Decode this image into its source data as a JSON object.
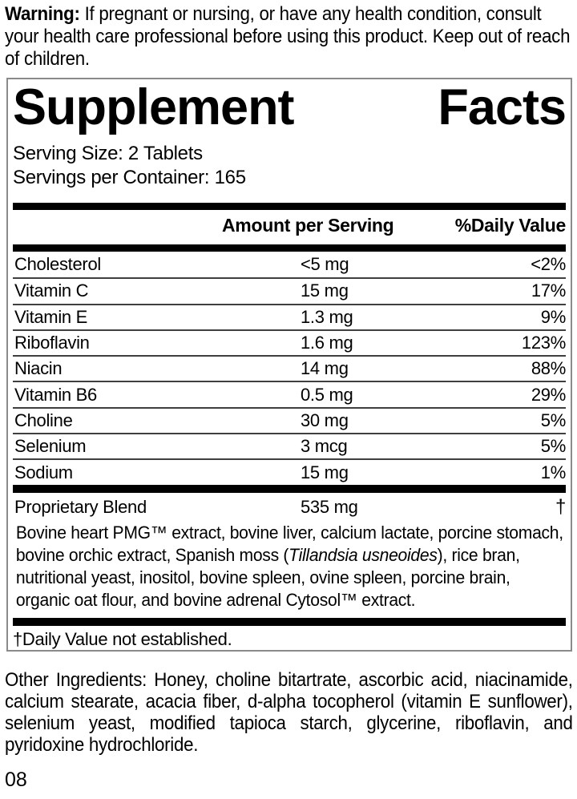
{
  "warning": {
    "label": "Warning:",
    "text": " If pregnant or nursing, or have any health condition, consult your health care professional before using this product. Keep out of reach of children."
  },
  "panel": {
    "title": "Supplement Facts",
    "serving_size": "Serving Size: 2 Tablets",
    "servings_per_container": "Servings per Container: 165",
    "header": {
      "amount": "Amount per Serving",
      "daily_value": "%Daily Value"
    },
    "rows": [
      {
        "name": "Cholesterol",
        "amount": "<5 mg",
        "dv": "<2%"
      },
      {
        "name": "Vitamin C",
        "amount": "15 mg",
        "dv": "17%"
      },
      {
        "name": "Vitamin E",
        "amount": "1.3 mg",
        "dv": "9%"
      },
      {
        "name": "Riboflavin",
        "amount": "1.6 mg",
        "dv": "123%"
      },
      {
        "name": "Niacin",
        "amount": "14 mg",
        "dv": "88%"
      },
      {
        "name": "Vitamin B6",
        "amount": "0.5 mg",
        "dv": "29%"
      },
      {
        "name": "Choline",
        "amount": "30 mg",
        "dv": "5%"
      },
      {
        "name": "Selenium",
        "amount": "3 mcg",
        "dv": "5%"
      },
      {
        "name": "Sodium",
        "amount": "15 mg",
        "dv": "1%"
      }
    ],
    "blend": {
      "name": "Proprietary Blend",
      "amount": "535 mg",
      "dv": "†",
      "description_before_italic": "Bovine heart PMG™ extract, bovine liver, calcium lactate, porcine stomach, bovine orchic extract, Spanish moss (",
      "description_italic": "Tillandsia usneoides",
      "description_after_italic": "), rice bran, nutritional yeast, inositol, bovine spleen, ovine spleen, porcine brain, organic oat flour, and bovine adrenal Cytosol™ extract."
    },
    "footnote": "†Daily Value not established."
  },
  "other_ingredients": "Other Ingredients: Honey, choline bitartrate, ascorbic acid, niacinamide, calcium stearate, acacia fiber, d-alpha tocopherol (vitamin E sunflower), selenium yeast, modified tapioca starch, glycerine, riboflavin, and pyridoxine hydrochloride.",
  "page_code": "08",
  "colors": {
    "text": "#000000",
    "panel_border": "#8a8a8a",
    "divider": "#3f3f3f",
    "bar": "#000000",
    "background": "#ffffff"
  }
}
